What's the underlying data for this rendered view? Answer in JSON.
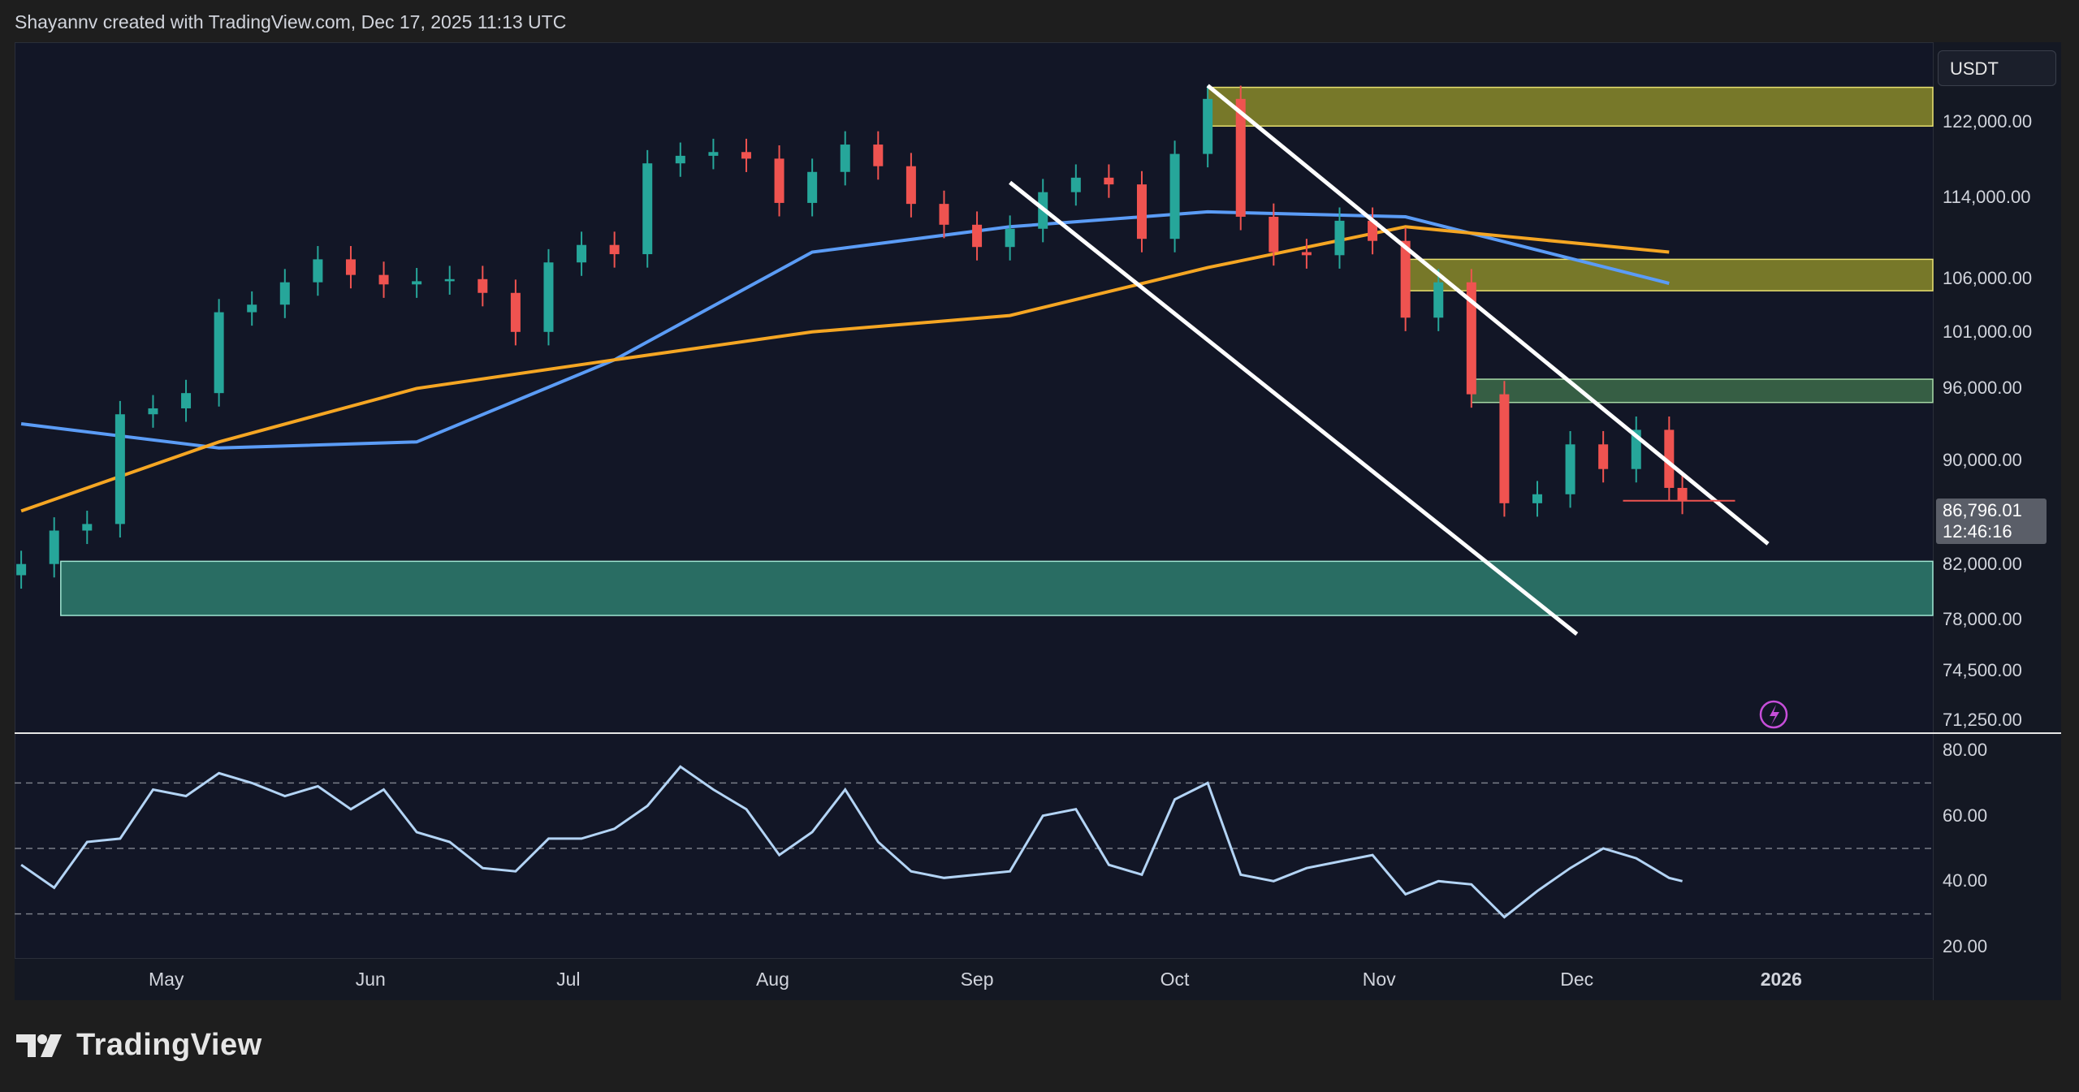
{
  "caption": "Shayannv created with TradingView.com, Dec 17, 2025 11:13 UTC",
  "brand": "TradingView",
  "currency": "USDT",
  "current_price": {
    "value": "86,796.01",
    "countdown": "12:46:16"
  },
  "colors": {
    "background": "#121626",
    "bull": "#26a69a",
    "bear": "#ef5350",
    "ma_blue": "#5b9cf6",
    "ma_orange": "#f5a623",
    "supply_zone": "#8a8a2a",
    "demand_zone": "#2e7d6e",
    "resistance_zone": "#3d6b4a",
    "rsi_line": "#b3d4f5",
    "channel": "#ffffff",
    "alert_icon": "#c64ed9"
  },
  "chart_data": [
    {
      "type": "line",
      "title": "",
      "subtitle": "",
      "xlabel": "",
      "ylabel": "",
      "x_tick_labels": [
        "May",
        "Jun",
        "Jul",
        "Aug",
        "Sep",
        "Oct",
        "Nov",
        "Dec",
        "2026"
      ],
      "y_tick_labels": [
        "122,000.00",
        "114,000.00",
        "106,000.00",
        "101,000.00",
        "96,000.00",
        "90,000.00",
        "82,000.00",
        "78,000.00",
        "74,500.00",
        "71,250.00"
      ],
      "y_scale": "log",
      "ylim": [
        70500,
        131000
      ],
      "xlim": [
        "2025-04-08",
        "2026-01-24"
      ],
      "grid": false,
      "legend": "none",
      "series": [
        {
          "kind": "price",
          "x": [
            "2025-04-09",
            "2025-04-14",
            "2025-04-19",
            "2025-04-24",
            "2025-04-29",
            "2025-05-04",
            "2025-05-09",
            "2025-05-14",
            "2025-05-19",
            "2025-05-24",
            "2025-05-29",
            "2025-06-03",
            "2025-06-08",
            "2025-06-13",
            "2025-06-18",
            "2025-06-23",
            "2025-06-28",
            "2025-07-03",
            "2025-07-08",
            "2025-07-13",
            "2025-07-18",
            "2025-07-23",
            "2025-07-28",
            "2025-08-02",
            "2025-08-07",
            "2025-08-12",
            "2025-08-17",
            "2025-08-22",
            "2025-08-27",
            "2025-09-01",
            "2025-09-06",
            "2025-09-11",
            "2025-09-16",
            "2025-09-21",
            "2025-09-26",
            "2025-10-01",
            "2025-10-06",
            "2025-10-11",
            "2025-10-16",
            "2025-10-21",
            "2025-10-26",
            "2025-10-31",
            "2025-11-05",
            "2025-11-10",
            "2025-11-15",
            "2025-11-20",
            "2025-11-25",
            "2025-11-30",
            "2025-12-05",
            "2025-12-10",
            "2025-12-15",
            "2025-12-17"
          ],
          "values": [
            82000,
            84500,
            85000,
            93800,
            94300,
            95600,
            102800,
            103500,
            105600,
            107800,
            106300,
            105400,
            105700,
            105900,
            104600,
            101000,
            107500,
            109200,
            108300,
            117500,
            118300,
            118700,
            118000,
            113400,
            116600,
            119500,
            117200,
            113300,
            111200,
            109000,
            110800,
            114500,
            116000,
            115300,
            109800,
            118500,
            124500,
            112000,
            108500,
            108200,
            111600,
            109600,
            102300,
            105600,
            95500,
            86600,
            87300,
            91300,
            89300,
            92500,
            87800,
            86796
          ]
        },
        {
          "kind": "moving_average",
          "color": "blue",
          "x": [
            "2025-04-09",
            "2025-05-09",
            "2025-06-08",
            "2025-07-08",
            "2025-08-07",
            "2025-09-06",
            "2025-10-06",
            "2025-11-05",
            "2025-12-15"
          ],
          "values": [
            93000,
            91000,
            91500,
            98500,
            108500,
            111000,
            112500,
            112000,
            105500
          ]
        },
        {
          "kind": "moving_average",
          "color": "orange",
          "x": [
            "2025-04-09",
            "2025-05-09",
            "2025-06-08",
            "2025-07-08",
            "2025-08-07",
            "2025-09-06",
            "2025-10-06",
            "2025-11-05",
            "2025-12-15"
          ],
          "values": [
            86000,
            91500,
            96000,
            98500,
            101000,
            102500,
            107000,
            111000,
            108500
          ]
        }
      ],
      "zones": [
        {
          "name": "supply",
          "from": 121500,
          "to": 125800
        },
        {
          "name": "supply",
          "from": 104800,
          "to": 107800
        },
        {
          "name": "resistance",
          "from": 94800,
          "to": 96800
        },
        {
          "name": "demand",
          "from": 78300,
          "to": 82200
        }
      ],
      "channel_lines": [
        {
          "from": {
            "x": "2025-10-06",
            "y": 126000
          },
          "to": {
            "x": "2025-12-30",
            "y": 83500
          }
        },
        {
          "from": {
            "x": "2025-09-06",
            "y": 115500
          },
          "to": {
            "x": "2025-12-01",
            "y": 77000
          }
        }
      ],
      "horizontal_line": {
        "x_from": "2025-12-08",
        "x_to": "2025-12-25",
        "y": 86796
      }
    },
    {
      "type": "line",
      "title": "",
      "xlabel": "",
      "ylabel": "",
      "y_tick_labels": [
        "80.00",
        "60.00",
        "40.00",
        "20.00"
      ],
      "ylim": [
        17,
        84
      ],
      "reference_lines": [
        70,
        50,
        30
      ],
      "series": [
        {
          "x": [
            "2025-04-09",
            "2025-04-14",
            "2025-04-19",
            "2025-04-24",
            "2025-04-29",
            "2025-05-04",
            "2025-05-09",
            "2025-05-14",
            "2025-05-19",
            "2025-05-24",
            "2025-05-29",
            "2025-06-03",
            "2025-06-08",
            "2025-06-13",
            "2025-06-18",
            "2025-06-23",
            "2025-06-28",
            "2025-07-03",
            "2025-07-08",
            "2025-07-13",
            "2025-07-18",
            "2025-07-23",
            "2025-07-28",
            "2025-08-02",
            "2025-08-07",
            "2025-08-12",
            "2025-08-17",
            "2025-08-22",
            "2025-08-27",
            "2025-09-01",
            "2025-09-06",
            "2025-09-11",
            "2025-09-16",
            "2025-09-21",
            "2025-09-26",
            "2025-10-01",
            "2025-10-06",
            "2025-10-11",
            "2025-10-16",
            "2025-10-21",
            "2025-10-26",
            "2025-10-31",
            "2025-11-05",
            "2025-11-10",
            "2025-11-15",
            "2025-11-20",
            "2025-11-25",
            "2025-11-30",
            "2025-12-05",
            "2025-12-10",
            "2025-12-15",
            "2025-12-17"
          ],
          "values": [
            45,
            38,
            52,
            53,
            68,
            66,
            73,
            70,
            66,
            69,
            62,
            68,
            55,
            52,
            44,
            43,
            53,
            53,
            56,
            63,
            75,
            68,
            62,
            48,
            55,
            68,
            52,
            43,
            41,
            42,
            43,
            60,
            62,
            45,
            42,
            65,
            70,
            42,
            40,
            44,
            46,
            48,
            36,
            40,
            39,
            29,
            37,
            44,
            50,
            47,
            41,
            40
          ]
        }
      ]
    }
  ]
}
